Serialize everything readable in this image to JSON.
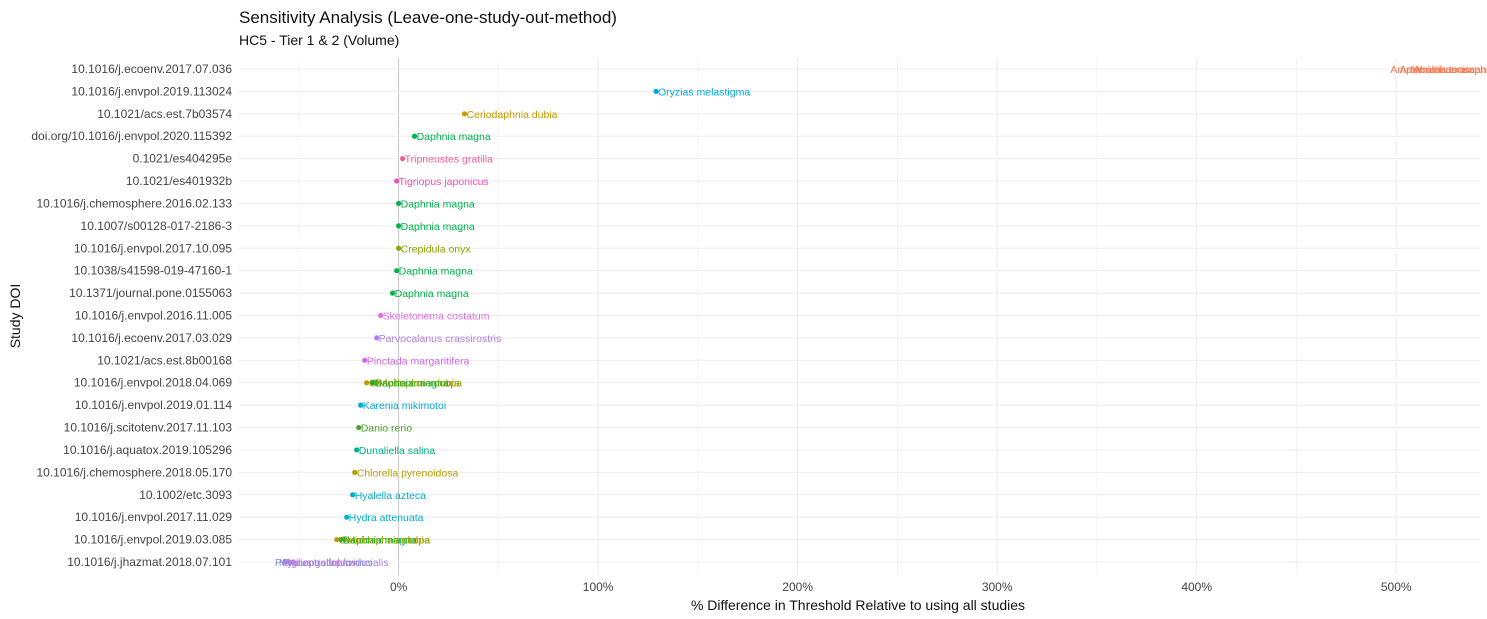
{
  "chart_data": {
    "type": "scatter",
    "title": "Sensitivity Analysis (Leave-one-study-out-method)",
    "subtitle": "HC5 - Tier 1 & 2 (Volume)",
    "xlabel": "% Difference in Threshold Relative to using all studies",
    "ylabel": "Study DOI",
    "xlim": [
      -80,
      542
    ],
    "x_ticks": [
      0,
      100,
      200,
      300,
      400,
      500
    ],
    "x_tick_labels": [
      "0%",
      "100%",
      "200%",
      "300%",
      "400%",
      "500%"
    ],
    "categories": [
      "10.1016/j.ecoenv.2017.07.036",
      "10.1016/j.envpol.2019.113024",
      "10.1021/acs.est.7b03574",
      "doi.org/10.1016/j.envpol.2020.115392",
      "0.1021/es404295e",
      "10.1021/es401932b",
      "10.1016/j.chemosphere.2016.02.133",
      "10.1007/s00128-017-2186-3",
      "10.1016/j.envpol.2017.10.095",
      "10.1038/s41598-019-47160-1",
      "10.1371/journal.pone.0155063",
      "10.1016/j.envpol.2016.11.005",
      "10.1016/j.ecoenv.2017.03.029",
      "10.1021/acs.est.8b00168",
      "10.1016/j.envpol.2018.04.069",
      "10.1016/j.envpol.2019.01.114",
      "10.1016/j.scitotenv.2017.11.103",
      "10.1016/j.aquatox.2019.105296",
      "10.1016/j.chemosphere.2018.05.170",
      "10.1002/etc.3093",
      "10.1016/j.envpol.2017.11.029",
      "10.1016/j.envpol.2019.03.085",
      "10.1016/j.jhazmat.2018.07.101"
    ],
    "points": [
      {
        "study": "10.1016/j.ecoenv.2017.07.036",
        "x": 524,
        "species": "Acartia tonsa",
        "color": "#f07a52",
        "dot": false
      },
      {
        "study": "10.1016/j.ecoenv.2017.07.036",
        "x": 526,
        "species": "Amphibalanus amphitrite",
        "color": "#f07a52",
        "dot": false
      },
      {
        "study": "10.1016/j.ecoenv.2017.07.036",
        "x": 525,
        "species": "Artemia franciscana",
        "color": "#f07a52",
        "dot": false
      },
      {
        "study": "10.1016/j.envpol.2019.113024",
        "x": 129,
        "species": "Oryzias melastigma",
        "color": "#00a9dc",
        "dot": true
      },
      {
        "study": "10.1021/acs.est.7b03574",
        "x": 33,
        "species": "Ceriodaphnia dubia",
        "color": "#c59b00",
        "dot": true
      },
      {
        "study": "doi.org/10.1016/j.envpol.2020.115392",
        "x": 8,
        "species": "Daphnia magna",
        "color": "#00b24a",
        "dot": true
      },
      {
        "study": "0.1021/es404295e",
        "x": 2,
        "species": "Tripneustes gratilla",
        "color": "#f0609c",
        "dot": true
      },
      {
        "study": "10.1021/es401932b",
        "x": -1,
        "species": "Tigriopus japonicus",
        "color": "#f050b8",
        "dot": true
      },
      {
        "study": "10.1016/j.chemosphere.2016.02.133",
        "x": 0,
        "species": "Daphnia magna",
        "color": "#00b24a",
        "dot": true
      },
      {
        "study": "10.1007/s00128-017-2186-3",
        "x": 0,
        "species": "Daphnia magna",
        "color": "#00b24a",
        "dot": true
      },
      {
        "study": "10.1016/j.envpol.2017.10.095",
        "x": 0,
        "species": "Crepidula onyx",
        "color": "#8aa500",
        "dot": true
      },
      {
        "study": "10.1038/s41598-019-47160-1",
        "x": -1,
        "species": "Daphnia magna",
        "color": "#00b24a",
        "dot": true
      },
      {
        "study": "10.1371/journal.pone.0155063",
        "x": -3,
        "species": "Daphnia magna",
        "color": "#00b24a",
        "dot": true
      },
      {
        "study": "10.1016/j.envpol.2016.11.005",
        "x": -9,
        "species": "Skeletonema costatum",
        "color": "#e36ee0",
        "dot": true
      },
      {
        "study": "10.1016/j.ecoenv.2017.03.029",
        "x": -11,
        "species": "Parvocalanus crassirostris",
        "color": "#b27ee8",
        "dot": true
      },
      {
        "study": "10.1021/acs.est.8b00168",
        "x": -17,
        "species": "Pinctada margaritifera",
        "color": "#d067e6",
        "dot": true
      },
      {
        "study": "10.1016/j.envpol.2018.04.069",
        "x": -16,
        "species": "Ceriodaphnia dubia",
        "color": "#c59b00",
        "dot": true
      },
      {
        "study": "10.1016/j.envpol.2018.04.069",
        "x": -13,
        "species": "Daphnia magna",
        "color": "#00b24a",
        "dot": true
      },
      {
        "study": "10.1016/j.envpol.2018.04.069",
        "x": -11,
        "species": "Moina macrocopa",
        "color": "#7caa00",
        "dot": true
      },
      {
        "study": "10.1016/j.envpol.2019.01.114",
        "x": -19,
        "species": "Karenia mikimotoi",
        "color": "#00a9dc",
        "dot": true
      },
      {
        "study": "10.1016/j.scitotenv.2017.11.103",
        "x": -20,
        "species": "Danio rerio",
        "color": "#4aa52c",
        "dot": true
      },
      {
        "study": "10.1016/j.aquatox.2019.105296",
        "x": -21,
        "species": "Dunaliella salina",
        "color": "#00b08a",
        "dot": true
      },
      {
        "study": "10.1016/j.chemosphere.2018.05.170",
        "x": -22,
        "species": "Chlorella pyrenoidosa",
        "color": "#b0a200",
        "dot": true
      },
      {
        "study": "10.1002/etc.3093",
        "x": -23,
        "species": "Hyalella azteca",
        "color": "#00b2c8",
        "dot": true
      },
      {
        "study": "10.1016/j.envpol.2017.11.029",
        "x": -26,
        "species": "Hydra attenuata",
        "color": "#00b2c8",
        "dot": true
      },
      {
        "study": "10.1016/j.envpol.2019.03.085",
        "x": -31,
        "species": "Ceriodaphnia dubia",
        "color": "#c59b00",
        "dot": true
      },
      {
        "study": "10.1016/j.envpol.2019.03.085",
        "x": -29,
        "species": "Daphnia magna",
        "color": "#00b24a",
        "dot": true
      },
      {
        "study": "10.1016/j.envpol.2019.03.085",
        "x": -27,
        "species": "Moina macrocopa",
        "color": "#7caa00",
        "dot": true
      },
      {
        "study": "10.1016/j.jhazmat.2018.07.101",
        "x": -57,
        "species": "Paracentrotus lividus",
        "color": "#7b9ad0",
        "dot": true
      },
      {
        "study": "10.1016/j.jhazmat.2018.07.101",
        "x": -55,
        "species": "Mytilus galloprovincialis",
        "color": "#a886e0",
        "dot": true
      },
      {
        "study": "10.1016/j.jhazmat.2018.07.101",
        "x": -53,
        "species": "Tigriopus fulvus",
        "color": "#c37cdc",
        "dot": true
      }
    ]
  }
}
